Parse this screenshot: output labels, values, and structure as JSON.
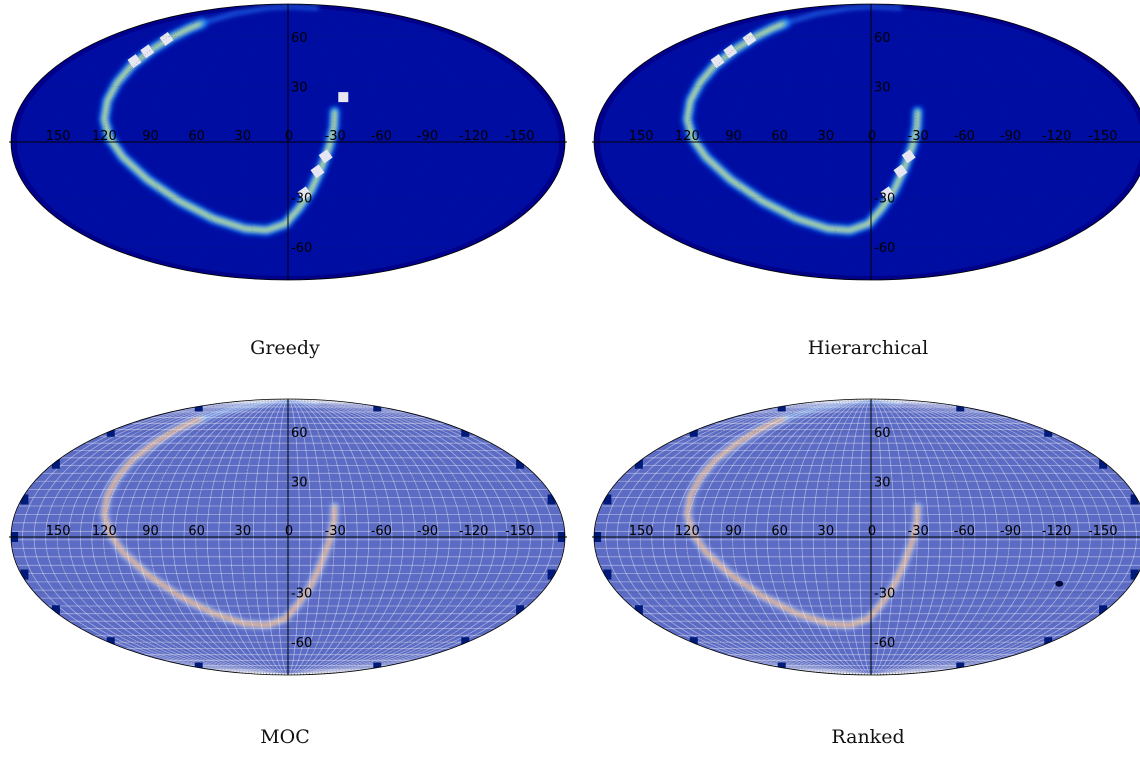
{
  "figure": {
    "projection": "mollweide",
    "colormap": "jet",
    "background_color": "#00008b",
    "lon_ticks": [
      "150",
      "120",
      "90",
      "60",
      "30",
      "0",
      "-30",
      "-60",
      "-90",
      "-120",
      "-150"
    ],
    "lat_ticks": [
      "60",
      "30",
      "-30",
      "-60"
    ],
    "panels": [
      {
        "caption": "Greedy",
        "style": "plain",
        "gap_blocks": true,
        "show_extra_block": true
      },
      {
        "caption": "Hierarchical",
        "style": "plain",
        "gap_blocks": true,
        "show_extra_block": false
      },
      {
        "caption": "MOC",
        "style": "tiled",
        "gap_blocks": false,
        "show_extra_block": false
      },
      {
        "caption": "Ranked",
        "style": "tiled",
        "gap_blocks": false,
        "show_extra_block": false,
        "show_dark_spot": true
      }
    ]
  }
}
